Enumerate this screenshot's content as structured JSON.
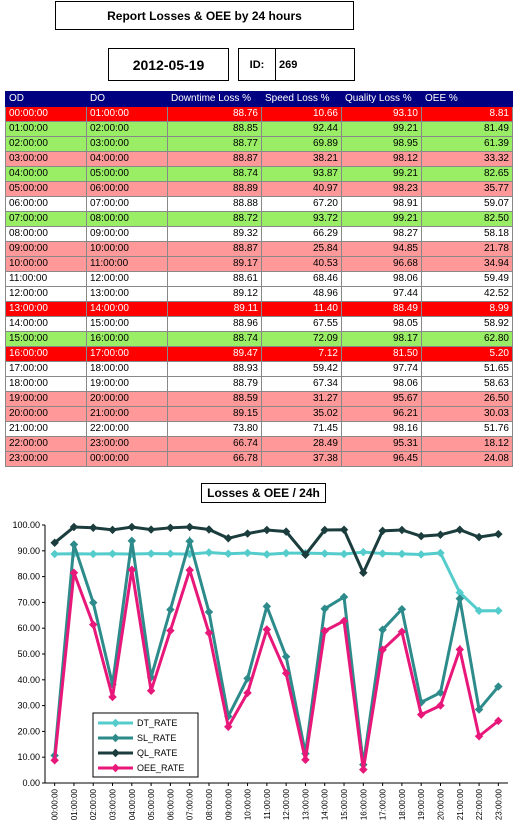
{
  "report": {
    "title": "Report Losses & OEE by 24 hours",
    "date": "2012-05-19",
    "id_label": "ID:",
    "id_value": "269"
  },
  "table": {
    "headers": [
      "OD",
      "DO",
      "Downtime Loss %",
      "Speed Loss %",
      "Quality Loss %",
      "OEE %"
    ],
    "rows": [
      {
        "od": "00:00:00",
        "do": "01:00:00",
        "dt": "88.76",
        "sl": "10.66",
        "ql": "93.10",
        "oee": "8.81",
        "color": "red"
      },
      {
        "od": "01:00:00",
        "do": "02:00:00",
        "dt": "88.85",
        "sl": "92.44",
        "ql": "99.21",
        "oee": "81.49",
        "color": "green"
      },
      {
        "od": "02:00:00",
        "do": "03:00:00",
        "dt": "88.77",
        "sl": "69.89",
        "ql": "98.95",
        "oee": "61.39",
        "color": "green"
      },
      {
        "od": "03:00:00",
        "do": "04:00:00",
        "dt": "88.87",
        "sl": "38.21",
        "ql": "98.12",
        "oee": "33.32",
        "color": "pink"
      },
      {
        "od": "04:00:00",
        "do": "05:00:00",
        "dt": "88.74",
        "sl": "93.87",
        "ql": "99.21",
        "oee": "82.65",
        "color": "green"
      },
      {
        "od": "05:00:00",
        "do": "06:00:00",
        "dt": "88.89",
        "sl": "40.97",
        "ql": "98.23",
        "oee": "35.77",
        "color": "pink"
      },
      {
        "od": "06:00:00",
        "do": "07:00:00",
        "dt": "88.88",
        "sl": "67.20",
        "ql": "98.91",
        "oee": "59.07",
        "color": "white"
      },
      {
        "od": "07:00:00",
        "do": "08:00:00",
        "dt": "88.72",
        "sl": "93.72",
        "ql": "99.21",
        "oee": "82.50",
        "color": "green"
      },
      {
        "od": "08:00:00",
        "do": "09:00:00",
        "dt": "89.32",
        "sl": "66.29",
        "ql": "98.27",
        "oee": "58.18",
        "color": "white"
      },
      {
        "od": "09:00:00",
        "do": "10:00:00",
        "dt": "88.87",
        "sl": "25.84",
        "ql": "94.85",
        "oee": "21.78",
        "color": "pink"
      },
      {
        "od": "10:00:00",
        "do": "11:00:00",
        "dt": "89.17",
        "sl": "40.53",
        "ql": "96.68",
        "oee": "34.94",
        "color": "pink"
      },
      {
        "od": "11:00:00",
        "do": "12:00:00",
        "dt": "88.61",
        "sl": "68.46",
        "ql": "98.06",
        "oee": "59.49",
        "color": "white"
      },
      {
        "od": "12:00:00",
        "do": "13:00:00",
        "dt": "89.12",
        "sl": "48.96",
        "ql": "97.44",
        "oee": "42.52",
        "color": "white"
      },
      {
        "od": "13:00:00",
        "do": "14:00:00",
        "dt": "89.11",
        "sl": "11.40",
        "ql": "88.49",
        "oee": "8.99",
        "color": "red"
      },
      {
        "od": "14:00:00",
        "do": "15:00:00",
        "dt": "88.96",
        "sl": "67.55",
        "ql": "98.05",
        "oee": "58.92",
        "color": "white"
      },
      {
        "od": "15:00:00",
        "do": "16:00:00",
        "dt": "88.74",
        "sl": "72.09",
        "ql": "98.17",
        "oee": "62.80",
        "color": "green"
      },
      {
        "od": "16:00:00",
        "do": "17:00:00",
        "dt": "89.47",
        "sl": "7.12",
        "ql": "81.50",
        "oee": "5.20",
        "color": "red"
      },
      {
        "od": "17:00:00",
        "do": "18:00:00",
        "dt": "88.93",
        "sl": "59.42",
        "ql": "97.74",
        "oee": "51.65",
        "color": "white"
      },
      {
        "od": "18:00:00",
        "do": "19:00:00",
        "dt": "88.79",
        "sl": "67.34",
        "ql": "98.06",
        "oee": "58.63",
        "color": "white"
      },
      {
        "od": "19:00:00",
        "do": "20:00:00",
        "dt": "88.59",
        "sl": "31.27",
        "ql": "95.67",
        "oee": "26.50",
        "color": "pink"
      },
      {
        "od": "20:00:00",
        "do": "21:00:00",
        "dt": "89.15",
        "sl": "35.02",
        "ql": "96.21",
        "oee": "30.03",
        "color": "pink"
      },
      {
        "od": "21:00:00",
        "do": "22:00:00",
        "dt": "73.80",
        "sl": "71.45",
        "ql": "98.16",
        "oee": "51.76",
        "color": "white"
      },
      {
        "od": "22:00:00",
        "do": "23:00:00",
        "dt": "66.74",
        "sl": "28.49",
        "ql": "95.31",
        "oee": "18.12",
        "color": "pink"
      },
      {
        "od": "23:00:00",
        "do": "00:00:00",
        "dt": "66.78",
        "sl": "37.38",
        "ql": "96.45",
        "oee": "24.08",
        "color": "pink"
      }
    ]
  },
  "chart_data": {
    "type": "line",
    "title": "Losses & OEE / 24h",
    "categories": [
      "00:00:00",
      "01:00:00",
      "02:00:00",
      "03:00:00",
      "04:00:00",
      "05:00:00",
      "06:00:00",
      "07:00:00",
      "08:00:00",
      "09:00:00",
      "10:00:00",
      "11:00:00",
      "12:00:00",
      "13:00:00",
      "14:00:00",
      "15:00:00",
      "16:00:00",
      "17:00:00",
      "18:00:00",
      "19:00:00",
      "20:00:00",
      "21:00:00",
      "22:00:00",
      "23:00:00"
    ],
    "ylim": [
      0,
      100
    ],
    "yticks": [
      "0.00",
      "10.00",
      "20.00",
      "30.00",
      "40.00",
      "50.00",
      "60.00",
      "70.00",
      "80.00",
      "90.00",
      "100.00"
    ],
    "legend_position": "bottom-left",
    "series": [
      {
        "name": "DT_RATE",
        "color": "#55cccc",
        "values": [
          88.76,
          88.85,
          88.77,
          88.87,
          88.74,
          88.89,
          88.88,
          88.72,
          89.32,
          88.87,
          89.17,
          88.61,
          89.12,
          89.11,
          88.96,
          88.74,
          89.47,
          88.93,
          88.79,
          88.59,
          89.15,
          73.8,
          66.74,
          66.78
        ]
      },
      {
        "name": "SL_RATE",
        "color": "#2e8b8b",
        "values": [
          10.66,
          92.44,
          69.89,
          38.21,
          93.87,
          40.97,
          67.2,
          93.72,
          66.29,
          25.84,
          40.53,
          68.46,
          48.96,
          11.4,
          67.55,
          72.09,
          7.12,
          59.42,
          67.34,
          31.27,
          35.02,
          71.45,
          28.49,
          37.38
        ]
      },
      {
        "name": "QL_RATE",
        "color": "#1c3d3d",
        "values": [
          93.1,
          99.21,
          98.95,
          98.12,
          99.21,
          98.23,
          98.91,
          99.21,
          98.27,
          94.85,
          96.68,
          98.06,
          97.44,
          88.49,
          98.05,
          98.17,
          81.5,
          97.74,
          98.06,
          95.67,
          96.21,
          98.16,
          95.31,
          96.45
        ]
      },
      {
        "name": "OEE_RATE",
        "color": "#e8187a",
        "values": [
          8.81,
          81.49,
          61.39,
          33.32,
          82.65,
          35.77,
          59.07,
          82.5,
          58.18,
          21.78,
          34.94,
          59.49,
          42.52,
          8.99,
          58.92,
          62.8,
          5.2,
          51.65,
          58.63,
          26.5,
          30.03,
          51.76,
          18.12,
          24.08
        ]
      }
    ]
  }
}
